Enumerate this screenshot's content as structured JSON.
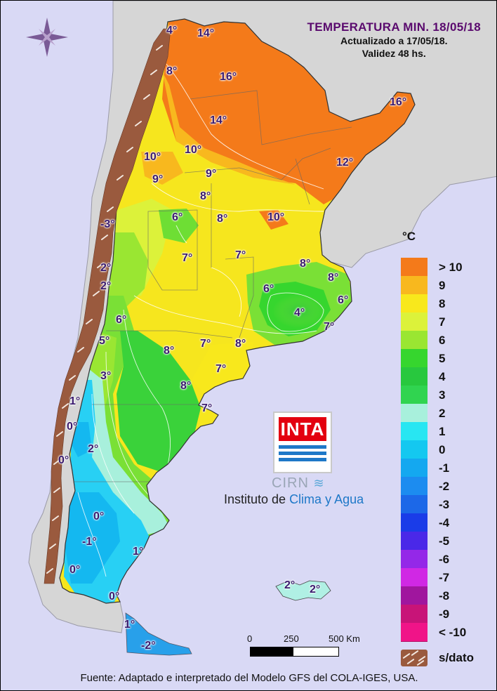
{
  "header": {
    "title": "TEMPERATURA MIN. 18/05/18",
    "updated": "Actualizado a 17/05/18.",
    "validity": "Validez 48 hs."
  },
  "legend": {
    "unit": "°C",
    "items": [
      {
        "label": "> 10",
        "color": "#f47a1a"
      },
      {
        "label": "9",
        "color": "#f8b81e"
      },
      {
        "label": "8",
        "color": "#f8e81c"
      },
      {
        "label": "7",
        "color": "#dcf23a"
      },
      {
        "label": "6",
        "color": "#9ae632"
      },
      {
        "label": "5",
        "color": "#36d62e"
      },
      {
        "label": "4",
        "color": "#28c83e"
      },
      {
        "label": "3",
        "color": "#30d450"
      },
      {
        "label": "2",
        "color": "#a8f0dc"
      },
      {
        "label": "1",
        "color": "#28e6f2"
      },
      {
        "label": "0",
        "color": "#14c8f0"
      },
      {
        "label": "-1",
        "color": "#14a8f0"
      },
      {
        "label": "-2",
        "color": "#1c8cf0"
      },
      {
        "label": "-3",
        "color": "#1c68e8"
      },
      {
        "label": "-4",
        "color": "#1a3ce8"
      },
      {
        "label": "-5",
        "color": "#4a28e8"
      },
      {
        "label": "-6",
        "color": "#9428e8"
      },
      {
        "label": "-7",
        "color": "#d028e4"
      },
      {
        "label": "-8",
        "color": "#a0169e"
      },
      {
        "label": "-9",
        "color": "#c81478"
      },
      {
        "label": "< -10",
        "color": "#f01488"
      }
    ],
    "no_data_label": "s/dato",
    "no_data_color": "#9a5a3e"
  },
  "map_values": [
    "4°",
    "14°",
    "8°",
    "16°",
    "16°",
    "14°",
    "10°",
    "10°",
    "12°",
    "9°",
    "9°",
    "8°",
    "-3°",
    "6°",
    "8°",
    "10°",
    "7°",
    "7°",
    "8°",
    "8°",
    "2°",
    "2°",
    "6°",
    "6°",
    "4°",
    "7°",
    "6°",
    "5°",
    "8°",
    "7°",
    "8°",
    "3°",
    "7°",
    "8°",
    "7°",
    "1°",
    "0°",
    "2°",
    "0°",
    "0°",
    "-1°",
    "1°",
    "0°",
    "0°",
    "1°",
    "2°",
    "2°",
    "-2°"
  ],
  "scale": {
    "labels": [
      "0",
      "250",
      "500 Km"
    ]
  },
  "logo": {
    "brand": "INTA",
    "sub_brand": "CIRN",
    "institute_prefix": "Instituto de ",
    "institute_highlight": "Clima y Agua"
  },
  "footer": {
    "source": "Fuente: Adaptado e interpretado del Modelo GFS del COLA-IGES, USA."
  }
}
